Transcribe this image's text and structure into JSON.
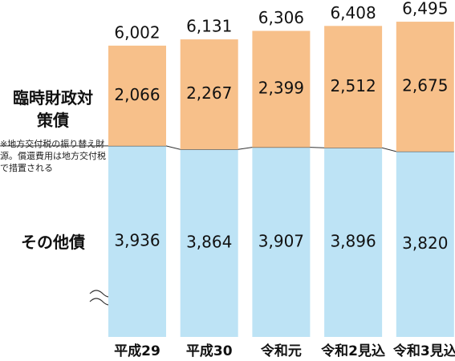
{
  "chart_data": {
    "type": "stacked-bar",
    "categories": [
      "平成29",
      "平成30",
      "令和元",
      "令和2見込",
      "令和3見込"
    ],
    "series": [
      {
        "name": "その他債",
        "color": "#bde3f5",
        "values": [
          3936,
          3864,
          3907,
          3896,
          3820
        ],
        "value_labels": [
          "3,936",
          "3,864",
          "3,907",
          "3,896",
          "3,820"
        ]
      },
      {
        "name": "臨時財政対策債",
        "color": "#f7c08a",
        "values": [
          2066,
          2267,
          2399,
          2512,
          2675
        ],
        "value_labels": [
          "2,066",
          "2,267",
          "2,399",
          "2,512",
          "2,675"
        ]
      }
    ],
    "totals": [
      6002,
      6131,
      6306,
      6408,
      6495
    ],
    "total_labels": [
      "6,002",
      "6,131",
      "6,306",
      "6,408",
      "6,495"
    ],
    "note": "※地方交付税の振り替え財源。償還費用は地方交付税で措置される"
  }
}
